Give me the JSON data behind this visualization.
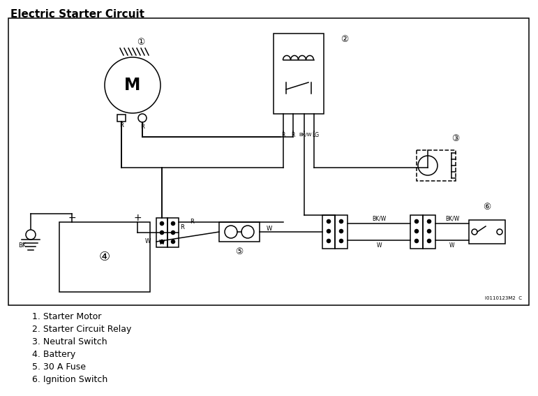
{
  "title": "Electric Starter Circuit",
  "bg": "#ffffff",
  "lc": "#000000",
  "legend": [
    "1. Starter Motor",
    "2. Starter Circuit Relay",
    "3. Neutral Switch",
    "4. Battery",
    "5. 30 A Fuse",
    "6. Ignition Switch"
  ],
  "watermark": "I0110123M2  C"
}
